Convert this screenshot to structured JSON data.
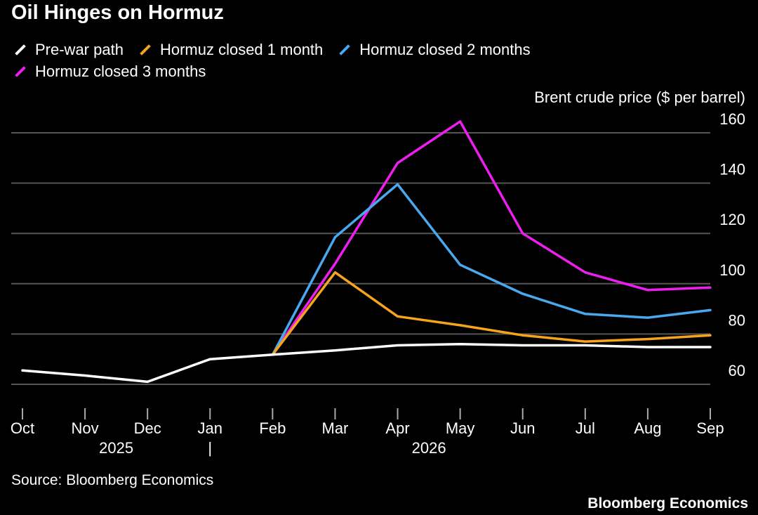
{
  "chart_data": {
    "type": "line",
    "title": "Oil Hinges on Hormuz",
    "ylabel": "Brent crude price ($ per barrel)",
    "xlabel": "",
    "ylim": [
      55,
      163
    ],
    "y_ticks": [
      60,
      80,
      100,
      120,
      140,
      160
    ],
    "categories": [
      "Oct",
      "Nov",
      "Dec",
      "Jan",
      "Feb",
      "Mar",
      "Apr",
      "May",
      "Jun",
      "Jul",
      "Aug",
      "Sep"
    ],
    "year_labels": [
      {
        "label": "2025",
        "after_index": 1
      },
      {
        "label": "2026",
        "after_index": 6
      }
    ],
    "year_divider": "|",
    "series": [
      {
        "name": "Pre-war path",
        "color": "#ffffff",
        "values": [
          65.5,
          63.5,
          61,
          70,
          71.8,
          73.5,
          75.5,
          76,
          75.5,
          75.5,
          74.8,
          74.8
        ]
      },
      {
        "name": "Hormuz closed 1 month",
        "color": "#f7a41d",
        "values": [
          null,
          null,
          null,
          null,
          71.8,
          104.5,
          87,
          83.5,
          79.5,
          77,
          78,
          79.5
        ]
      },
      {
        "name": "Hormuz closed 2 months",
        "color": "#4aa8ef",
        "values": [
          null,
          null,
          null,
          null,
          71.8,
          118.5,
          139.5,
          107.5,
          96,
          88,
          86.5,
          89.5
        ]
      },
      {
        "name": "Hormuz closed 3 months",
        "color": "#ee1eee",
        "values": [
          null,
          null,
          null,
          null,
          71.8,
          108,
          148,
          164.5,
          120,
          104.5,
          97.5,
          98.5
        ]
      }
    ],
    "grid": true,
    "legend_position": "top-left"
  },
  "source": "Source: Bloomberg Economics",
  "brand": "Bloomberg Economics"
}
